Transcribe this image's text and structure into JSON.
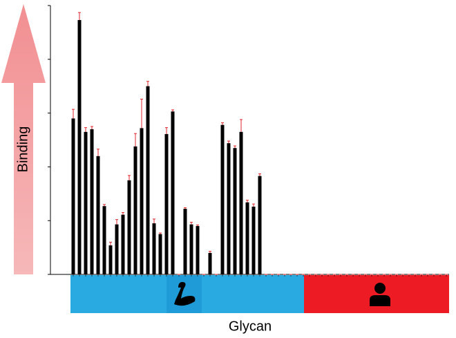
{
  "chart_data": {
    "type": "bar",
    "ylabel": "Binding",
    "xlabel": "Glycan",
    "categories": [
      null,
      null,
      null,
      null,
      null,
      null,
      null,
      null,
      null,
      null,
      null,
      null,
      null,
      null,
      null,
      null,
      null,
      null,
      null,
      null,
      null,
      null,
      null,
      null,
      null,
      null,
      null,
      null,
      null,
      null,
      null,
      null,
      null,
      null,
      null,
      null,
      null,
      null,
      null,
      null,
      null,
      null,
      null,
      null,
      null,
      null,
      null,
      null,
      null,
      null,
      null,
      null,
      null,
      null,
      null,
      null,
      null,
      null,
      null,
      null,
      null
    ],
    "values": [
      2.9,
      4.73,
      2.65,
      2.7,
      2.2,
      1.27,
      0.54,
      0.93,
      1.11,
      1.75,
      2.38,
      2.72,
      3.5,
      0.95,
      0.75,
      2.61,
      3.03,
      0,
      1.22,
      0.93,
      0.9,
      0,
      0.4,
      0,
      2.78,
      2.44,
      2.35,
      2.65,
      1.34,
      1.26,
      1.83,
      0,
      0,
      0,
      0,
      0,
      0,
      0,
      0,
      0,
      0,
      0,
      0,
      0,
      0,
      0,
      0,
      0,
      0,
      0,
      0,
      0,
      0,
      0,
      0,
      0,
      0,
      0,
      0,
      0,
      0
    ],
    "errors": [
      0.17,
      0.14,
      0.08,
      0.05,
      0.13,
      0.03,
      0.06,
      0.09,
      0.04,
      0.09,
      0.24,
      0.54,
      0.09,
      0.08,
      0.02,
      0.12,
      0.03,
      0,
      0.02,
      0.04,
      0.02,
      0,
      0.03,
      0,
      0.04,
      0.04,
      0.04,
      0.23,
      0.04,
      0.05,
      0.04,
      0,
      0,
      0,
      0,
      0,
      0,
      0,
      0,
      0,
      0,
      0,
      0,
      0,
      0,
      0,
      0,
      0,
      0,
      0,
      0,
      0,
      0,
      0,
      0,
      0,
      0,
      0,
      0,
      0,
      0
    ],
    "color": "#000000",
    "error_color": "#e0262b",
    "ylim": [
      0,
      5
    ],
    "yticks": [
      0,
      1,
      2,
      3,
      4,
      5
    ]
  }
}
